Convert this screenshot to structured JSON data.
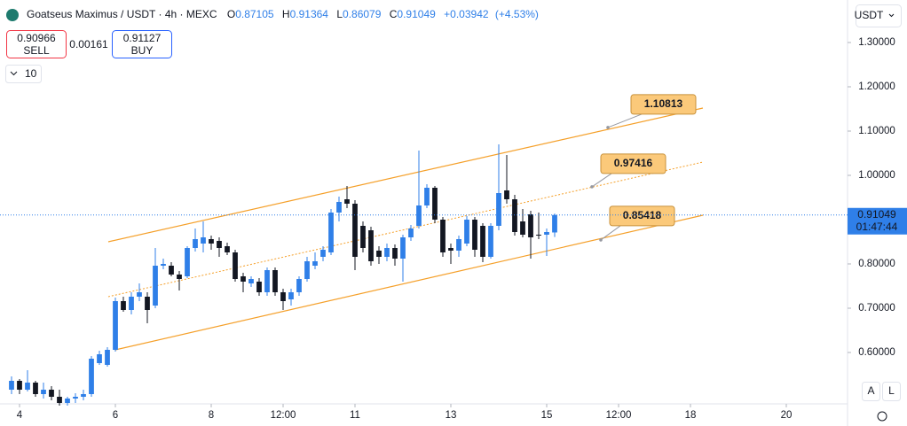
{
  "header": {
    "title": "Goatseus Maximus / USDT · 4h · MEXC",
    "o_label": "O",
    "h_label": "H",
    "l_label": "L",
    "c_label": "C",
    "change": "+0.03942",
    "change_pct": "(+4.53%)",
    "sell_price": "0.90966",
    "sell_label": "SELL",
    "spread": "0.00161",
    "buy_price": "0.91127",
    "buy_label": "BUY",
    "indicator_count": "10",
    "currency": "USDT",
    "countdown": "01:47:44",
    "auto_button": "A",
    "log_button": "L"
  },
  "chart_data": {
    "type": "candlestick",
    "up_color": "#2f7fe8",
    "down_color": "#131722",
    "channel_color": "#f5a02a",
    "channel_labels": [
      1.10813,
      0.97416,
      0.85418
    ],
    "x": [
      -1,
      0,
      1,
      2,
      3,
      4,
      5,
      6,
      7,
      8,
      9,
      10,
      11,
      12,
      13,
      14,
      15,
      16,
      17,
      18,
      19,
      20,
      21,
      22,
      23,
      24,
      25,
      26,
      27,
      28,
      29,
      30,
      31,
      32,
      33,
      34,
      35,
      36,
      37,
      38,
      39,
      40,
      41,
      42,
      43,
      44,
      45,
      46,
      47,
      48,
      49,
      50,
      51,
      52,
      53,
      54,
      55,
      56,
      57,
      58,
      59,
      60,
      61,
      62,
      63,
      64,
      65,
      66,
      67
    ],
    "open": [
      0.516,
      0.536,
      0.516,
      0.532,
      0.506,
      0.516,
      0.5,
      0.486,
      0.496,
      0.5,
      0.506,
      0.576,
      0.572,
      0.606,
      0.716,
      0.696,
      0.726,
      0.726,
      0.706,
      0.796,
      0.796,
      0.776,
      0.772,
      0.836,
      0.846,
      0.856,
      0.852,
      0.84,
      0.826,
      0.772,
      0.756,
      0.76,
      0.736,
      0.786,
      0.736,
      0.72,
      0.736,
      0.766,
      0.796,
      0.816,
      0.826,
      0.916,
      0.946,
      0.936,
      0.886,
      0.876,
      0.83,
      0.816,
      0.836,
      0.812,
      0.86,
      0.886,
      0.932,
      0.972,
      0.9,
      0.836,
      0.83,
      0.846,
      0.9,
      0.886,
      0.816,
      0.886,
      0.966,
      0.946,
      0.896,
      0.912,
      0.866,
      0.866,
      0.87105
    ],
    "high": [
      0.546,
      0.54,
      0.56,
      0.536,
      0.532,
      0.524,
      0.516,
      0.5,
      0.508,
      0.516,
      0.592,
      0.604,
      0.612,
      0.724,
      0.726,
      0.736,
      0.756,
      0.736,
      0.836,
      0.812,
      0.804,
      0.784,
      0.84,
      0.88,
      0.896,
      0.864,
      0.86,
      0.848,
      0.832,
      0.78,
      0.772,
      0.768,
      0.792,
      0.792,
      0.744,
      0.744,
      0.772,
      0.816,
      0.826,
      0.84,
      0.924,
      0.952,
      0.976,
      0.944,
      0.896,
      0.884,
      0.84,
      0.846,
      0.844,
      0.866,
      0.888,
      1.056,
      0.98,
      0.976,
      0.906,
      0.846,
      0.864,
      0.908,
      0.906,
      0.892,
      0.892,
      1.07,
      1.046,
      0.956,
      0.924,
      0.92,
      0.916,
      0.88,
      0.91364
    ],
    "low": [
      0.506,
      0.506,
      0.512,
      0.5,
      0.496,
      0.492,
      0.48,
      0.48,
      0.486,
      0.492,
      0.5,
      0.572,
      0.568,
      0.602,
      0.692,
      0.686,
      0.716,
      0.666,
      0.7,
      0.788,
      0.772,
      0.74,
      0.768,
      0.828,
      0.826,
      0.832,
      0.816,
      0.82,
      0.76,
      0.736,
      0.748,
      0.728,
      0.728,
      0.728,
      0.696,
      0.706,
      0.728,
      0.76,
      0.788,
      0.806,
      0.82,
      0.896,
      0.926,
      0.786,
      0.826,
      0.796,
      0.8,
      0.806,
      0.796,
      0.76,
      0.852,
      0.88,
      0.926,
      0.892,
      0.816,
      0.8,
      0.816,
      0.84,
      0.816,
      0.804,
      0.812,
      0.876,
      0.936,
      0.864,
      0.86,
      0.812,
      0.856,
      0.818,
      0.86079
    ],
    "close": [
      0.536,
      0.516,
      0.532,
      0.506,
      0.516,
      0.5,
      0.486,
      0.496,
      0.5,
      0.506,
      0.586,
      0.596,
      0.606,
      0.716,
      0.696,
      0.726,
      0.736,
      0.696,
      0.796,
      0.8,
      0.776,
      0.766,
      0.836,
      0.856,
      0.86,
      0.846,
      0.836,
      0.826,
      0.766,
      0.76,
      0.766,
      0.736,
      0.786,
      0.736,
      0.716,
      0.736,
      0.766,
      0.806,
      0.806,
      0.832,
      0.916,
      0.94,
      0.936,
      0.816,
      0.836,
      0.806,
      0.816,
      0.836,
      0.812,
      0.86,
      0.88,
      0.932,
      0.972,
      0.9,
      0.826,
      0.83,
      0.856,
      0.9,
      0.832,
      0.816,
      0.886,
      0.96,
      0.946,
      0.872,
      0.866,
      0.86,
      0.864,
      0.872,
      0.91049
    ],
    "xlim": [
      -2.444,
      103.667
    ],
    "ylim": [
      0.486,
      1.396
    ],
    "xticks": [
      {
        "value": 0,
        "label": "4"
      },
      {
        "value": 12,
        "label": "6"
      },
      {
        "value": 24,
        "label": "8"
      },
      {
        "value": 33,
        "label": "12:00"
      },
      {
        "value": 42,
        "label": "11"
      },
      {
        "value": 54,
        "label": "13"
      },
      {
        "value": 66,
        "label": "15"
      },
      {
        "value": 75,
        "label": "12:00"
      },
      {
        "value": 84,
        "label": "18"
      },
      {
        "value": 96,
        "label": "20"
      }
    ],
    "yticks": [
      {
        "value": 0.6,
        "label": "0.60000"
      },
      {
        "value": 0.7,
        "label": "0.70000"
      },
      {
        "value": 0.8,
        "label": "0.80000"
      },
      {
        "value": 0.9,
        "label": "0.90000"
      },
      {
        "value": 1.0,
        "label": "1.00000"
      },
      {
        "value": 1.1,
        "label": "1.10000"
      },
      {
        "value": 1.2,
        "label": "1.20000"
      },
      {
        "value": 1.3,
        "label": "1.30000"
      }
    ]
  }
}
